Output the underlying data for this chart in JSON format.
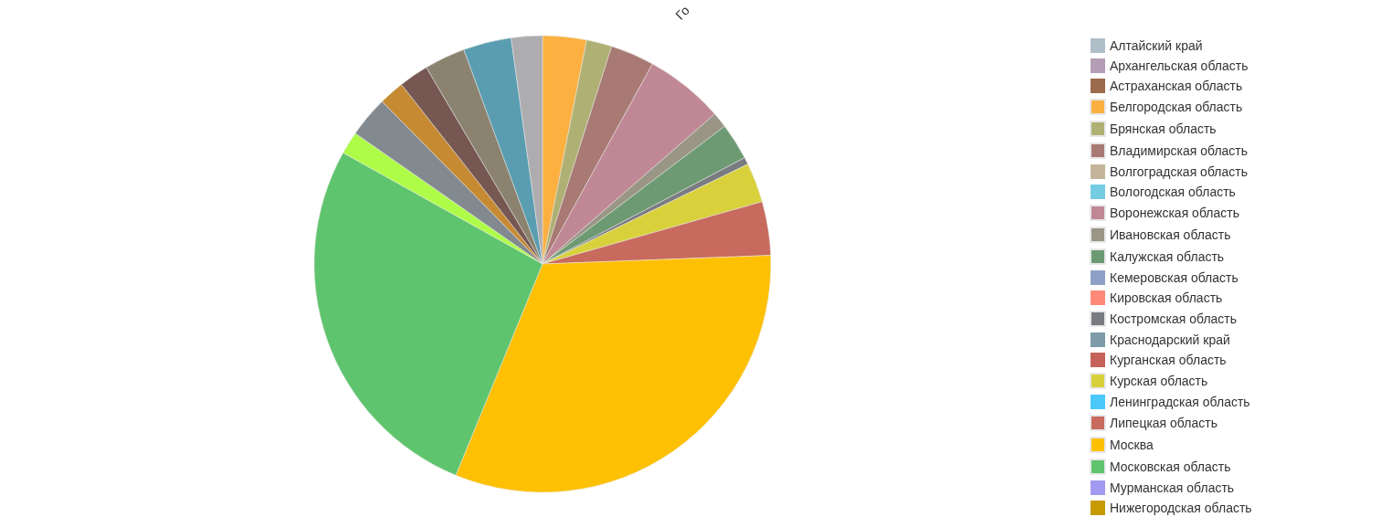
{
  "chart_data": {
    "type": "pie",
    "title": "Го",
    "categories": [
      "Алтайский край",
      "Архангельская область",
      "Астраханская область",
      "Белгородская область",
      "Брянская область",
      "Владимирская область",
      "Волгоградская область",
      "Вологодская область",
      "Воронежская область",
      "Ивановская область",
      "Калужская область",
      "Кемеровская область",
      "Кировская область",
      "Костромская область",
      "Краснодарский край",
      "Курганская область",
      "Курская область",
      "Ленинградская область",
      "Липецкая область",
      "Москва",
      "Московская область",
      "Мурманская область",
      "Нижегородская область",
      null,
      null,
      null,
      null,
      null,
      null,
      null
    ],
    "values": [
      0,
      0,
      0,
      3.1,
      1.8,
      3.1,
      0,
      0,
      5.6,
      1.1,
      2.6,
      0,
      0,
      0.5,
      0,
      0,
      2.8,
      0,
      3.8,
      31.8,
      26.9,
      0,
      0,
      1.6,
      2.9,
      1.8,
      2.1,
      2.9,
      3.4,
      2.2
    ],
    "colors": [
      "#b0bec8",
      "#b39eb5",
      "#9c6b4e",
      "#fbb040",
      "#afb073",
      "#a87a73",
      "#c4b59a",
      "#74cce3",
      "#c08895",
      "#9a9686",
      "#6d9a72",
      "#8fa0c6",
      "#ff8a7a",
      "#7a7b80",
      "#7e9ba9",
      "#c5625a",
      "#d8d13c",
      "#4ac8fa",
      "#c86a5e",
      "#fec003",
      "#5fc46e",
      "#a09af0",
      "#c69a00",
      "#aefc48",
      "#828a8f",
      "#c68a33",
      "#765752",
      "#8b8270",
      "#5a9db0",
      "#adadb0"
    ],
    "legend": "right"
  }
}
